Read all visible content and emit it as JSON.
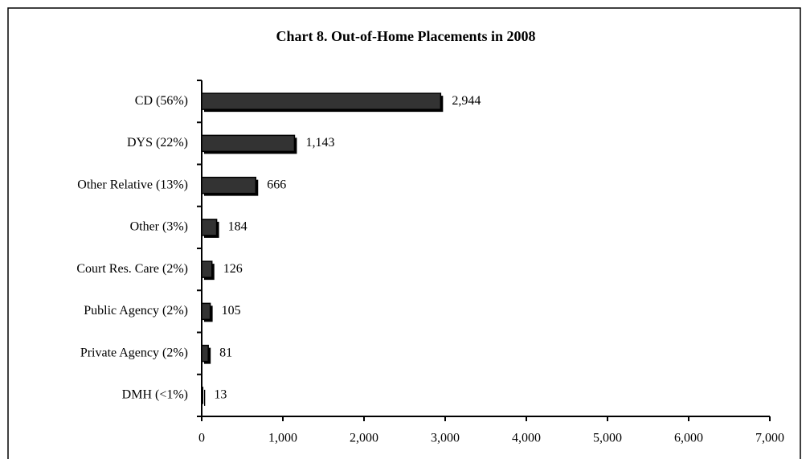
{
  "chart_data": {
    "type": "bar",
    "orientation": "horizontal",
    "title": "Chart 8.  Out-of-Home Placements in 2008",
    "categories": [
      "CD (56%)",
      "DYS (22%)",
      "Other Relative (13%)",
      "Other (3%)",
      "Court Res. Care (2%)",
      "Public Agency (2%)",
      "Private Agency (2%)",
      "DMH (<1%)"
    ],
    "values": [
      2944,
      1143,
      666,
      184,
      126,
      105,
      81,
      13
    ],
    "value_labels": [
      "2,944",
      "1,143",
      "666",
      "184",
      "126",
      "105",
      "81",
      "13"
    ],
    "color": "#333333",
    "xlim": [
      0,
      7000
    ],
    "xticks": [
      0,
      {
        "value": 1000,
        "label": "1,000"
      },
      {
        "value": 2000,
        "label": "2,000"
      },
      {
        "value": 3000,
        "label": "3,000"
      },
      {
        "value": 4000,
        "label": "4,000"
      },
      {
        "value": 5000,
        "label": "5,000"
      },
      {
        "value": 6000,
        "label": "6,000"
      },
      {
        "value": 7000,
        "label": "7,000"
      }
    ],
    "grid": false
  }
}
